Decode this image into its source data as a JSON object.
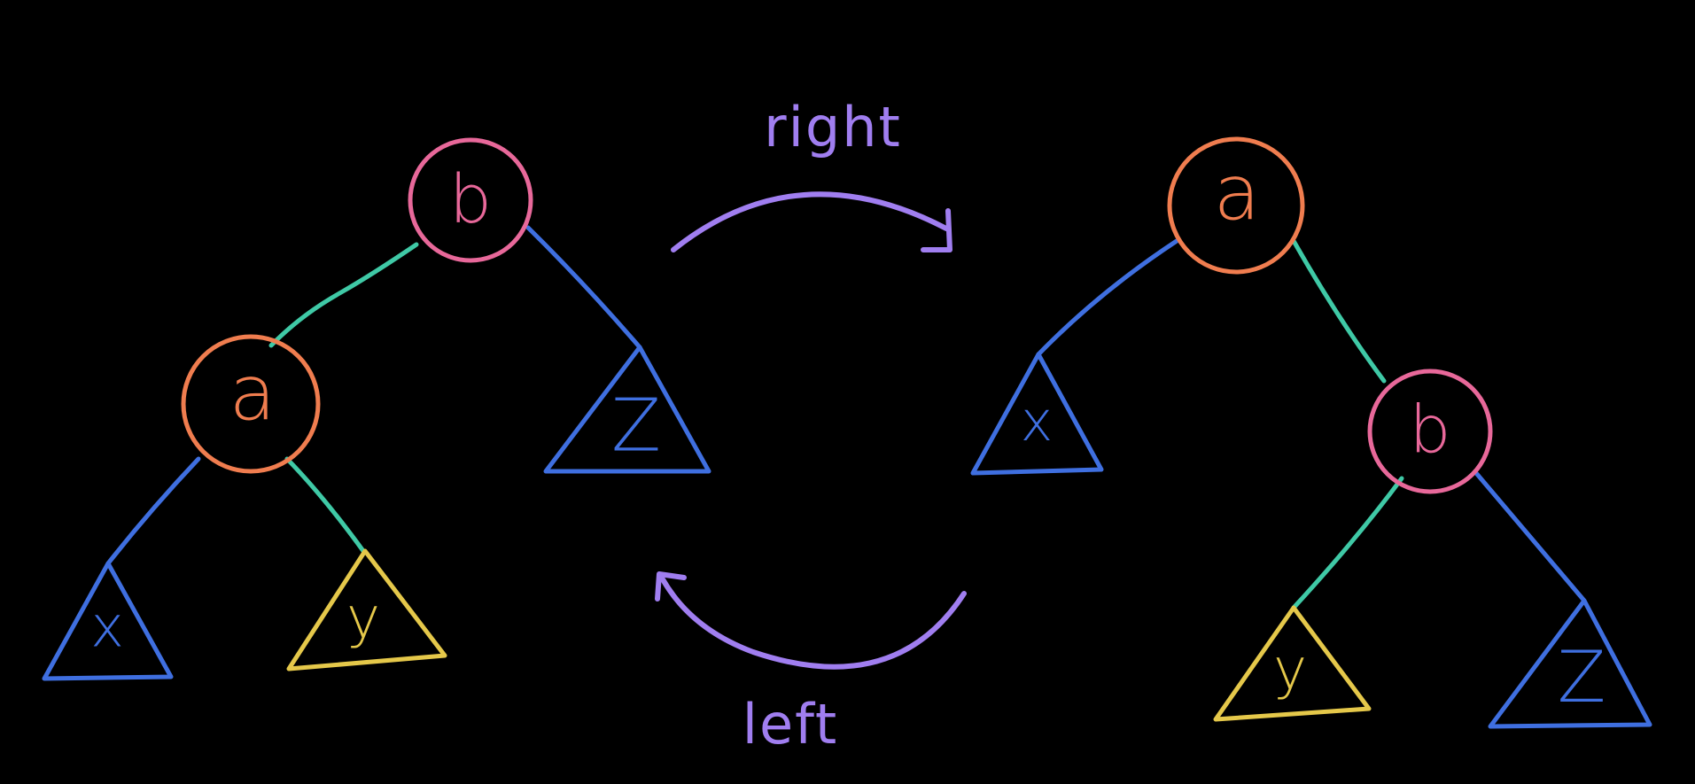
{
  "colors": {
    "background": "#000000",
    "edge_left_child": "#3f6fe0",
    "edge_right_child": "#3fc9a6",
    "node_b": "#e8689a",
    "node_a": "#f07d4f",
    "subtree_x": "#3f6fe0",
    "subtree_y": "#e5c84a",
    "subtree_z": "#3f6fe0",
    "arrow": "#a07ef0"
  },
  "diagram": {
    "left_tree": {
      "root": {
        "label": "b"
      },
      "left_child": {
        "label": "a"
      },
      "subtrees": {
        "x": "x",
        "y": "y",
        "z": "Z"
      }
    },
    "right_tree": {
      "root": {
        "label": "a"
      },
      "right_child": {
        "label": "b"
      },
      "subtrees": {
        "x": "x",
        "y": "y",
        "z": "Z"
      }
    },
    "rotations": {
      "right_label": "right",
      "left_label": "left"
    }
  }
}
